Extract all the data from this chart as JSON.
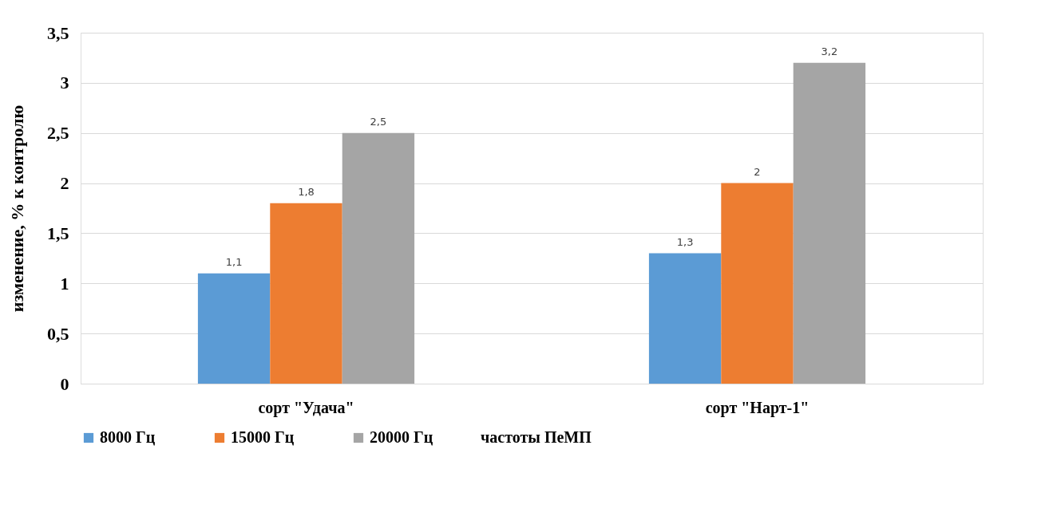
{
  "chart_data": {
    "type": "bar",
    "ylabel": "изменение,  % к контролю",
    "legend_title": "частоты ПеМП",
    "categories": [
      "сорт \"Удача\"",
      "сорт \"Нарт-1\""
    ],
    "series": [
      {
        "name": "8000 Гц",
        "color": "#5b9bd5",
        "values": [
          1.1,
          1.3
        ],
        "value_labels": [
          "1,1",
          "1,3"
        ]
      },
      {
        "name": "15000 Гц",
        "color": "#ed7d31",
        "values": [
          1.8,
          2
        ],
        "value_labels": [
          "1,8",
          "2"
        ]
      },
      {
        "name": "20000 Гц",
        "color": "#a5a5a5",
        "values": [
          2.5,
          3.2
        ],
        "value_labels": [
          "2,5",
          "3,2"
        ]
      }
    ],
    "ylim": [
      0,
      3.5
    ],
    "yticks": [
      {
        "value": 0,
        "label": "0"
      },
      {
        "value": 0.5,
        "label": "0,5"
      },
      {
        "value": 1,
        "label": "1"
      },
      {
        "value": 1.5,
        "label": "1,5"
      },
      {
        "value": 2,
        "label": "2"
      },
      {
        "value": 2.5,
        "label": "2,5"
      },
      {
        "value": 3,
        "label": "3"
      },
      {
        "value": 3.5,
        "label": "3,5"
      }
    ],
    "grid": "y",
    "legend": "bottom"
  }
}
